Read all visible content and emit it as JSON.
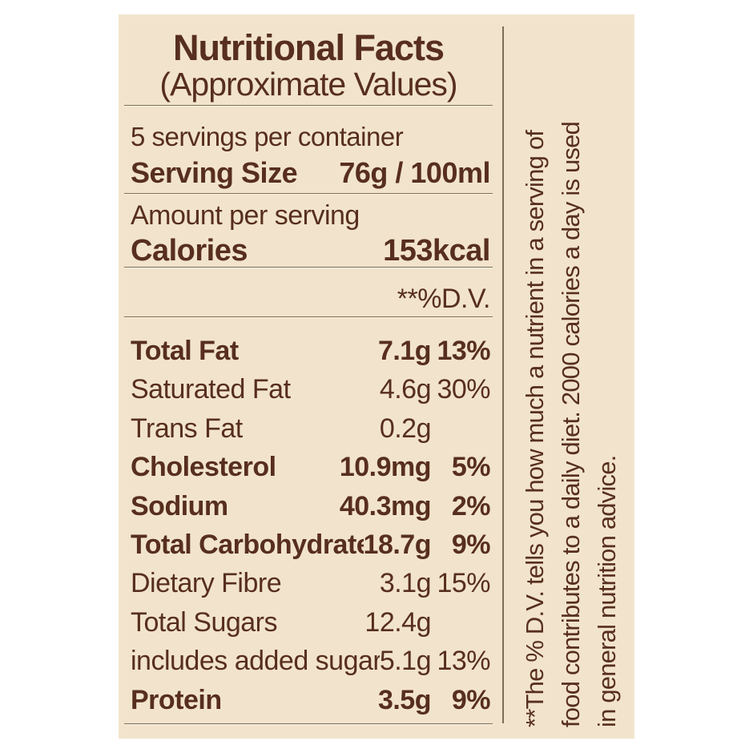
{
  "label": {
    "title": "Nutritional Facts",
    "subtitle": "(Approximate Values)",
    "servings_per_container": "5 servings per container",
    "serving_size": {
      "label": "Serving Size",
      "value": "76g / 100ml"
    },
    "amount_per_serving": "Amount per serving",
    "calories": {
      "label": "Calories",
      "value": "153kcal"
    },
    "dv_column_header": "**%D.V.",
    "nutrients": [
      {
        "name": "Total Fat",
        "amount": "7.1g",
        "dv": "13%"
      },
      {
        "name": "Saturated Fat",
        "amount": "4.6g",
        "dv": "30%"
      },
      {
        "name": "Trans Fat",
        "amount": "0.2g",
        "dv": ""
      },
      {
        "name": "Cholesterol",
        "amount": "10.9mg",
        "dv": "5%"
      },
      {
        "name": "Sodium",
        "amount": "40.3mg",
        "dv": "2%"
      },
      {
        "name": "Total Carbohydrate",
        "amount": "18.7g",
        "dv": "9%"
      },
      {
        "name": "Dietary Fibre",
        "amount": "3.1g",
        "dv": "15%"
      },
      {
        "name": "Total Sugars",
        "amount": "12.4g",
        "dv": ""
      },
      {
        "name": "includes added sugar",
        "amount": "5.1g",
        "dv": "13%"
      },
      {
        "name": "Protein",
        "amount": "3.5g",
        "dv": "9%"
      }
    ],
    "footnote_lines": [
      "**The % D.V. tells you how much a nutrient in a serving of",
      "food contributes to a daily diet. 2000 calories a day is used",
      "in general nutrition advice."
    ],
    "colors": {
      "panel_background": "#f2e4cc",
      "text": "#572e1f",
      "rule": "#7b6e59",
      "page_background": "#ffffff"
    }
  }
}
